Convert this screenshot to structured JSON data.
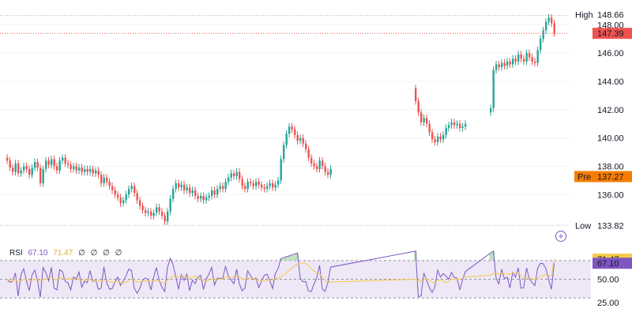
{
  "rsi_legend": {
    "name": "RSI",
    "value": "67.10",
    "ma_value": "71.47",
    "extras": [
      "∅",
      "∅",
      "∅",
      "∅"
    ]
  },
  "colors": {
    "up": "#26a69a",
    "down": "#ef5350",
    "rsi_line": "#7e57c2",
    "rsi_ma": "#f7c948",
    "rsi_band": "#ede7f6",
    "pre": "#f57c00",
    "price_line": "#ef5350"
  },
  "price_axis": {
    "ticks": [
      "148.00",
      "146.00",
      "144.00",
      "142.00",
      "140.00",
      "138.00",
      "136.00"
    ],
    "high_label": "High",
    "high_value": "148.66",
    "current_value": "147.39",
    "pre_label": "Pre",
    "pre_value": "137.27",
    "low_label": "Low",
    "low_value": "133.82"
  },
  "rsi_axis": {
    "ticks": [
      "50.00",
      "25.00"
    ],
    "ma_badge": "71.47",
    "value_badge": "67.10"
  },
  "chart_data": {
    "type": "candlestick",
    "price_range": [
      133.0,
      149.3
    ],
    "high": 148.66,
    "low": 133.82,
    "last": 147.39,
    "premarket": 137.27,
    "segments": [
      [
        138.4,
        137.9,
        137.6,
        138.2,
        137.5,
        137.7,
        138.0,
        137.8,
        137.4,
        137.9,
        138.3,
        137.9,
        136.8,
        137.8,
        138.4,
        138.1,
        138.5,
        138.0,
        137.7,
        138.4,
        138.6,
        138.2,
        138.1,
        137.8,
        138.0,
        137.7,
        137.9,
        137.6,
        137.8,
        137.6,
        137.8,
        137.5,
        137.7,
        137.4,
        136.8,
        137.2,
        136.9,
        136.6,
        136.3,
        136.0,
        135.8,
        135.4,
        135.6,
        136.0,
        136.4,
        136.6,
        136.1,
        135.6,
        135.2,
        134.9,
        134.7,
        134.8,
        134.5,
        134.7,
        135.1,
        134.8,
        134.5,
        134.1,
        134.8,
        135.7,
        136.4,
        136.8,
        136.5,
        136.7,
        136.3,
        136.5,
        136.1,
        136.3,
        135.9,
        135.7,
        135.9,
        135.6,
        135.8,
        135.9,
        136.3,
        136.0,
        136.4,
        136.6,
        136.4,
        136.9,
        137.2,
        137.5,
        137.3,
        137.6,
        137.1,
        136.6,
        136.4,
        136.9,
        136.8,
        136.6,
        136.9,
        136.7,
        136.5,
        136.4,
        136.6,
        136.8,
        136.5,
        136.7,
        137.0,
        138.5,
        139.5,
        140.3,
        140.8,
        140.6,
        140.2,
        139.8,
        140.0,
        139.6,
        139.2,
        138.6,
        138.2,
        138.0,
        137.8,
        138.4,
        138.0,
        137.6,
        137.4,
        137.8
      ],
      [
        142.6,
        141.8,
        141.1,
        141.4,
        141.0,
        140.4,
        139.9,
        139.7,
        140.1,
        139.9,
        140.2,
        140.7,
        140.9,
        141.1,
        140.9,
        141.0,
        140.7,
        140.8,
        141.0
      ],
      [
        142.1,
        144.8,
        145.2,
        145.0,
        145.3,
        145.1,
        145.4,
        145.2,
        145.6,
        145.4,
        145.9,
        145.6,
        145.4,
        146.0,
        145.7,
        145.4,
        145.3,
        146.2,
        147.0,
        147.6,
        148.2,
        148.5,
        148.1,
        147.4
      ]
    ],
    "rsi": {
      "range": [
        15,
        85
      ],
      "overbought": 70,
      "midline": 50,
      "oversold": 30,
      "last": 67.1,
      "ma_last": 71.47
    }
  }
}
